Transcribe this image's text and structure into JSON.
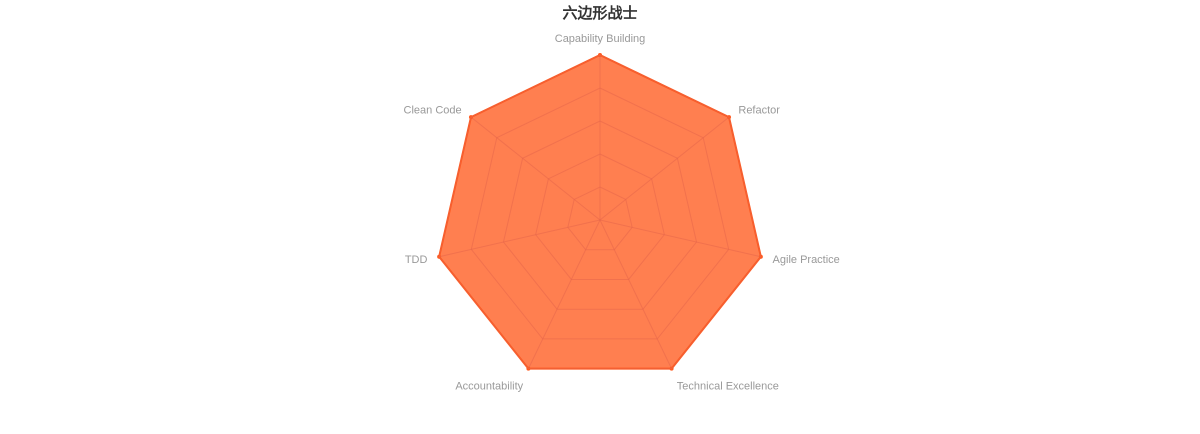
{
  "chart_data": {
    "type": "radar",
    "title": "六边形战士",
    "indicators": [
      {
        "name": "Capability Building",
        "max": 10
      },
      {
        "name": "Refactor",
        "max": 10
      },
      {
        "name": "Agile Practice",
        "max": 10
      },
      {
        "name": "Technical Excellence",
        "max": 10
      },
      {
        "name": "Accountability",
        "max": 10
      },
      {
        "name": "TDD",
        "max": 10
      },
      {
        "name": "Clean Code",
        "max": 10
      }
    ],
    "series": [
      {
        "values": [
          10,
          10,
          10,
          10,
          10,
          10,
          10
        ]
      }
    ],
    "split_number": 5,
    "colors": {
      "area": "#ff7f50",
      "line": "#ff5a1f",
      "split_line": "#e5664a",
      "label": "#999999",
      "title": "#333333"
    }
  }
}
